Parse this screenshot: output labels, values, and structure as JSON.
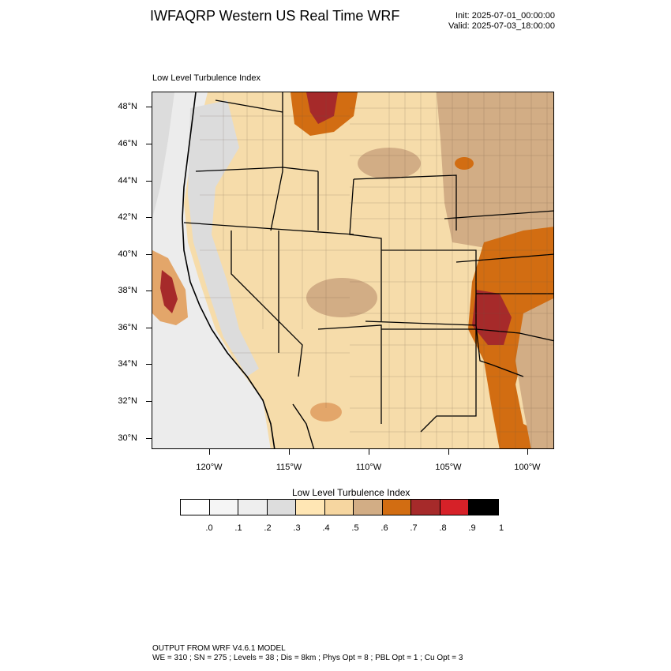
{
  "header": {
    "title": "IWFAQRP Western US Real Time WRF",
    "init": "Init: 2025-07-01_00:00:00",
    "valid": "Valid: 2025-07-03_18:00:00"
  },
  "map": {
    "subtitle": "Low Level Turbulence Index",
    "lat_labels": [
      "48°N",
      "46°N",
      "44°N",
      "42°N",
      "40°N",
      "38°N",
      "36°N",
      "34°N",
      "32°N",
      "30°N"
    ],
    "lon_labels": [
      "120°W",
      "115°W",
      "110°W",
      "105°W",
      "100°W"
    ],
    "field_colors": {
      "ocean_low": "#ececec",
      "coast_mid": "#dcdcdc",
      "background": "#f6dcaa",
      "elevated": "#d2ad85",
      "high": "#d26d12",
      "very_high": "#a62a2a"
    }
  },
  "colorbar": {
    "title": "Low Level Turbulence Index",
    "colors": [
      "#ffffff",
      "#f5f5f5",
      "#eeeeee",
      "#dddddd",
      "#ffe6b4",
      "#f6d6a0",
      "#d2ad85",
      "#d26d12",
      "#a62a2a",
      "#d62128",
      "#000000"
    ],
    "labels": [
      ".0",
      ".1",
      ".2",
      ".3",
      ".4",
      ".5",
      ".6",
      ".7",
      ".8",
      ".9",
      "1"
    ]
  },
  "footer": {
    "line1": "OUTPUT FROM WRF V4.6.1 MODEL",
    "line2": "WE = 310 ; SN = 275 ; Levels = 38 ; Dis = 8km ; Phys Opt = 8 ; PBL Opt = 1 ; Cu Opt = 3"
  }
}
